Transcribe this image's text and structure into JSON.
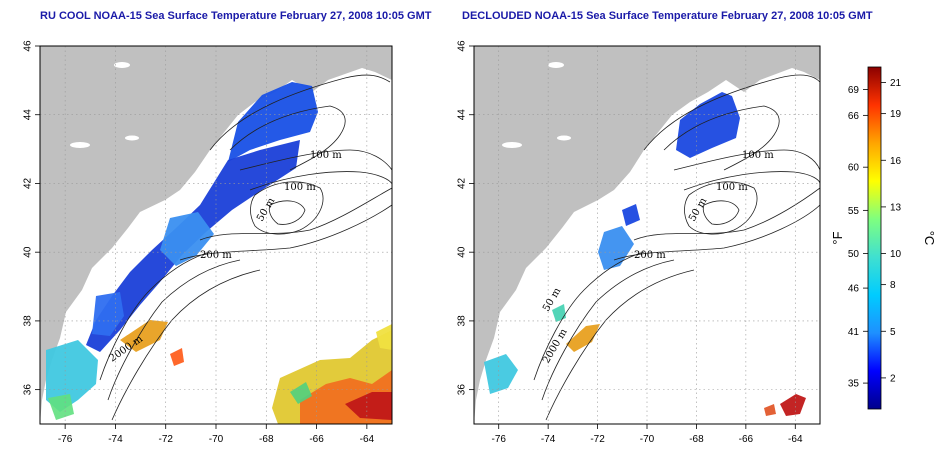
{
  "panels": [
    {
      "id": "left",
      "title": "RU COOL NOAA-15 Sea Surface Temperature February 27, 2008 10:05 GMT",
      "contour_labels": [
        "100 m",
        "100 m",
        "50 m",
        "200 m",
        "2000 m",
        "50 m"
      ]
    },
    {
      "id": "right",
      "title": "DECLOUDED NOAA-15 Sea Surface Temperature February 27, 2008 10:05 GMT",
      "contour_labels": [
        "100 m",
        "100 m",
        "50 m",
        "200 m",
        "2000 m",
        "50 m"
      ]
    }
  ],
  "axes": {
    "lon_ticks": [
      "-76",
      "-74",
      "-72",
      "-70",
      "-68",
      "-66",
      "-64"
    ],
    "lat_ticks": [
      "46",
      "44",
      "42",
      "40",
      "38",
      "36"
    ],
    "lon_range": [
      -77.0,
      -63.0
    ],
    "lat_range": [
      35.0,
      46.0
    ],
    "grid": "dotted"
  },
  "colorbar": {
    "fahrenheit_ticks": [
      "69",
      "66",
      "60",
      "55",
      "50",
      "46",
      "41",
      "35"
    ],
    "celsius_ticks": [
      "21",
      "19",
      "16",
      "13",
      "10",
      "8",
      "5",
      "2"
    ],
    "fahrenheit_unit": "°F",
    "celsius_unit": "°C",
    "celsius_range": [
      0,
      22
    ],
    "colors": [
      "#00008b",
      "#0000ff",
      "#1e90ff",
      "#00ccff",
      "#40e0d0",
      "#7fff7f",
      "#ffff00",
      "#ffa500",
      "#ff3300",
      "#8b0000"
    ]
  },
  "map_colors": {
    "land": "#c0c0c0",
    "ocean_nodata": "#ffffff",
    "contour": "#222222"
  }
}
